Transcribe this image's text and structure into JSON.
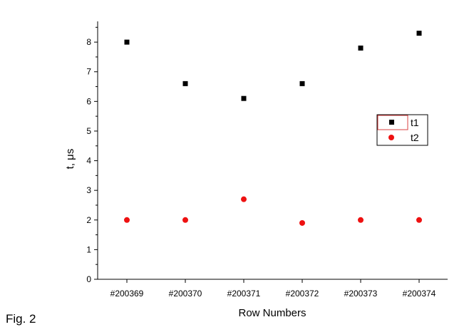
{
  "figure": {
    "caption": "Fig. 2"
  },
  "chart_data": {
    "type": "scatter",
    "categories": [
      "#200369",
      "#200370",
      "#200371",
      "#200372",
      "#200373",
      "#200374"
    ],
    "series": [
      {
        "name": "t1",
        "marker": "square",
        "color": "#000000",
        "values": [
          8.0,
          6.6,
          6.1,
          6.6,
          7.8,
          8.3
        ]
      },
      {
        "name": "t2",
        "marker": "circle",
        "color": "#ee1111",
        "values": [
          2.0,
          2.0,
          2.7,
          1.9,
          2.0,
          2.0
        ]
      }
    ],
    "xlabel": "Row Numbers",
    "ylabel": "t, μs",
    "ylim": [
      0,
      8.7
    ],
    "yticks": [
      0,
      1,
      2,
      3,
      4,
      5,
      6,
      7,
      8
    ],
    "grid": false,
    "legend_position": "right"
  }
}
